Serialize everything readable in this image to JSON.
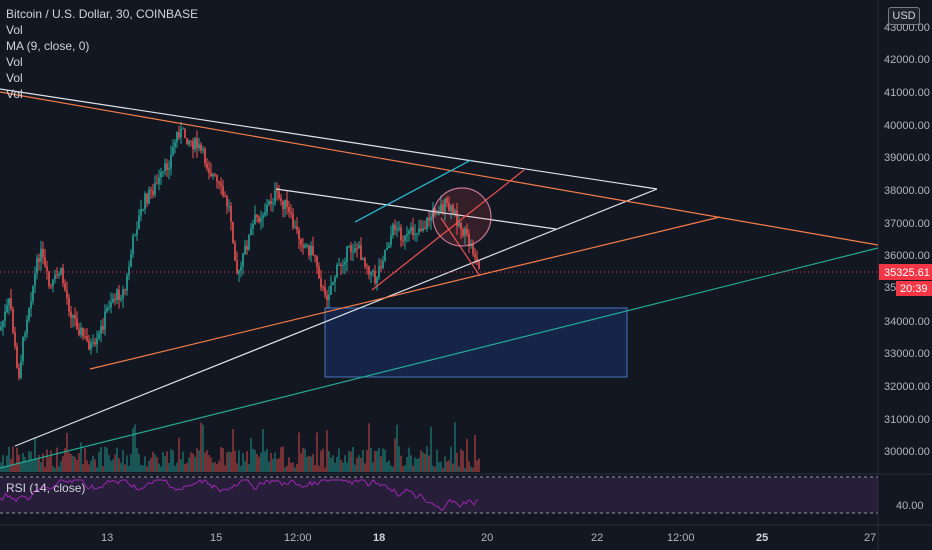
{
  "legend": {
    "symbol": "Bitcoin / U.S. Dollar, 30, COINBASE",
    "lines": [
      "Vol",
      "MA (9, close, 0)",
      "Vol",
      "Vol",
      "Vol"
    ]
  },
  "rsi": {
    "label": "RSI (14, close)",
    "level_label": "40.00"
  },
  "currency": "USD",
  "price_axis": {
    "ticks": [
      "43000.00",
      "42000.00",
      "41000.00",
      "40000.00",
      "39000.00",
      "38000.00",
      "37000.00",
      "36000.00",
      "35000.00",
      "34000.00",
      "33000.00",
      "32000.00",
      "31000.00",
      "30000.00"
    ],
    "current_price": "35325.61",
    "countdown": "20:39",
    "partial_tick": "350"
  },
  "time_axis": {
    "labels": [
      "13",
      "15",
      "12:00",
      "18",
      "20",
      "22",
      "12:00",
      "25",
      "27"
    ]
  },
  "colors": {
    "background": "#131722",
    "up": "#26a69a",
    "down": "#ef5350",
    "price_label": "#f23645",
    "rsi_line": "#9c27b0",
    "white_line": "#e0e3eb",
    "orange_line": "#f57c4a",
    "teal_line": "#22ab94",
    "cyan_line": "#26c6da"
  }
}
